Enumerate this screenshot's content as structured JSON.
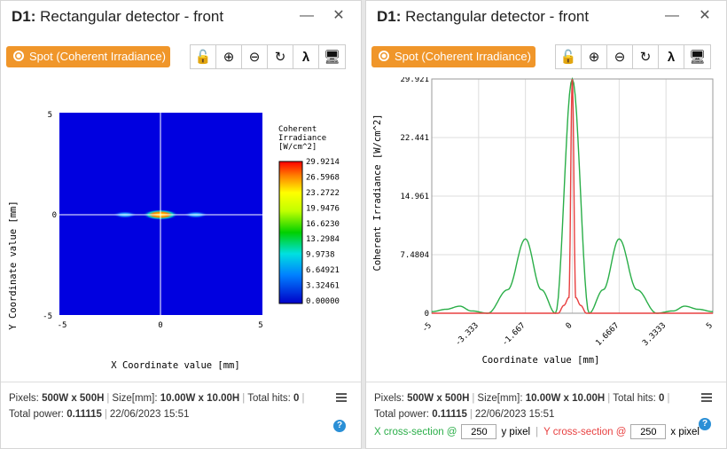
{
  "left": {
    "title_bold": "D1:",
    "title_rest": "Rectangular detector - front",
    "spot_label": "Spot (Coherent Irradiance)",
    "plot": {
      "x_ticks": [
        "-5",
        "0",
        "5"
      ],
      "y_ticks": [
        "5",
        "0",
        "-5"
      ],
      "xlabel": "X Coordinate value [mm]",
      "ylabel": "Y Coordinate value [mm]",
      "legend_title": [
        "Coherent",
        "Irradiance",
        "[W/cm^2]"
      ],
      "legend_values": [
        "29.9214",
        "26.5968",
        "23.2722",
        "19.9476",
        "16.6230",
        "13.2984",
        "9.9738",
        "6.64921",
        "3.32461",
        "0.00000"
      ]
    },
    "footer": {
      "pixels_label": "Pixels:",
      "pixels_value": "500W x 500H",
      "size_label": "Size[mm]:",
      "size_value": "10.00W x 10.00H",
      "hits_label": "Total hits:",
      "hits_value": "0",
      "power_label": "Total power:",
      "power_value": "0.11115",
      "datetime": "22/06/2023 15:51"
    }
  },
  "right": {
    "title_bold": "D1:",
    "title_rest": "Rectangular detector - front",
    "spot_label": "Spot (Coherent Irradiance)",
    "footer": {
      "pixels_label": "Pixels:",
      "pixels_value": "500W x 500H",
      "size_label": "Size[mm]:",
      "size_value": "10.00W x 10.00H",
      "hits_label": "Total hits:",
      "hits_value": "0",
      "power_label": "Total power:",
      "power_value": "0.11115",
      "datetime": "22/06/2023 15:51",
      "x_section_label": "X cross-section @",
      "x_section_value": "250",
      "x_section_unit": "y pixel",
      "y_section_label": "Y cross-section @",
      "y_section_value": "250",
      "y_section_unit": "x pixel"
    }
  },
  "icons": {
    "close": "close-icon",
    "minimize": "minimize-icon",
    "spot": "spot-icon",
    "unlock": "unlock-icon",
    "zoom_in": "zoom-in-icon",
    "zoom_out": "zoom-out-icon",
    "refresh": "refresh-icon",
    "wavelength": "lambda-icon",
    "display": "monitor-icon",
    "menu": "menu-icon",
    "help": "help-icon"
  },
  "colors": {
    "accent": "#f0962a",
    "x_section": "#2aae48",
    "y_section": "#e84040",
    "plot_bg": "#0000e0"
  },
  "chart_data": {
    "type": "line",
    "title": "",
    "xlabel": "Coordinate value [mm]",
    "ylabel": "Coherent Irradiance [W/cm^2]",
    "x_ticks": [
      "-5",
      "-3.333",
      "-1.667",
      "0",
      "1.6667",
      "3.3333",
      "5"
    ],
    "y_ticks": [
      "0",
      "7.4804",
      "14.961",
      "22.441",
      "29.921"
    ],
    "xlim": [
      -5,
      5
    ],
    "ylim": [
      0,
      29.921
    ],
    "grid": true,
    "series": [
      {
        "color": "#2aae48",
        "x": [
          -5,
          -4.5,
          -4.0,
          -3.6,
          -3.0,
          -2.3,
          -1.667,
          -1.1,
          -0.6,
          0,
          0.6,
          1.1,
          1.667,
          2.3,
          3.0,
          3.6,
          4.0,
          4.5,
          5
        ],
        "y": [
          0.2,
          0.5,
          0.9,
          0.3,
          0,
          3.0,
          9.5,
          3.0,
          0,
          29.921,
          0,
          3.0,
          9.5,
          3.0,
          0,
          0.3,
          0.9,
          0.5,
          0.2
        ]
      },
      {
        "color": "#e84040",
        "x": [
          -5,
          -0.5,
          -0.3,
          -0.12,
          0,
          0.12,
          0.3,
          0.5,
          5
        ],
        "y": [
          0,
          0,
          1.0,
          2.0,
          29.9,
          2.0,
          1.0,
          0,
          0
        ]
      }
    ]
  }
}
